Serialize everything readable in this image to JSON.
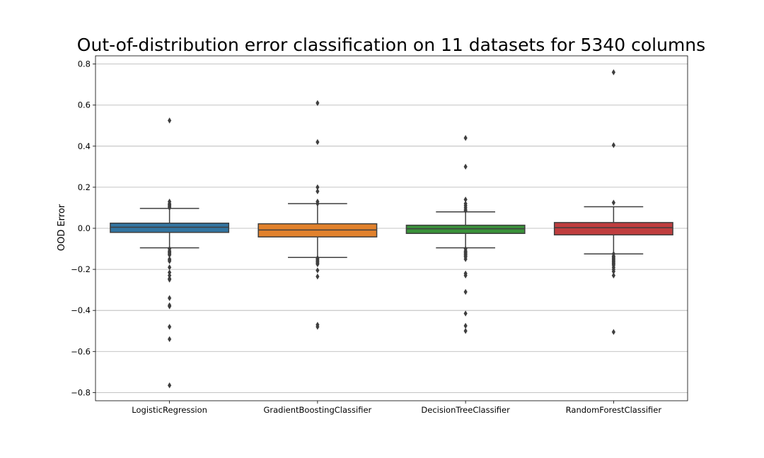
{
  "chart_data": {
    "type": "box",
    "title": "Out-of-distribution error classification on 11 datasets for 5340 columns",
    "xlabel": "",
    "ylabel": "OOD Error",
    "ylim": [
      -0.84,
      0.84
    ],
    "yticks": [
      -0.8,
      -0.6,
      -0.4,
      -0.2,
      0.0,
      0.2,
      0.4,
      0.6,
      0.8
    ],
    "ytick_labels": [
      "−0.8",
      "−0.6",
      "−0.4",
      "−0.2",
      "0.0",
      "0.2",
      "0.4",
      "0.6",
      "0.8"
    ],
    "grid": "horizontal",
    "categories": [
      "LogisticRegression",
      "GradientBoostingClassifier",
      "DecisionTreeClassifier",
      "RandomForestClassifier"
    ],
    "colors": [
      "#3274a1",
      "#e1812c",
      "#3a923a",
      "#c03d3e"
    ],
    "boxes": [
      {
        "q1": -0.02,
        "median": 0.005,
        "q3": 0.025,
        "whisker_low": -0.095,
        "whisker_high": 0.097,
        "outliers": [
          0.525,
          0.13,
          0.12,
          0.115,
          0.11,
          0.105,
          0.1,
          -0.1,
          -0.11,
          -0.115,
          -0.12,
          -0.125,
          -0.13,
          -0.15,
          -0.155,
          -0.16,
          -0.19,
          -0.215,
          -0.23,
          -0.245,
          -0.25,
          -0.34,
          -0.375,
          -0.38,
          -0.48,
          -0.54,
          -0.765
        ]
      },
      {
        "q1": -0.042,
        "median": -0.008,
        "q3": 0.022,
        "whisker_low": -0.142,
        "whisker_high": 0.12,
        "outliers": [
          0.61,
          0.42,
          0.2,
          0.18,
          0.13,
          0.12,
          -0.145,
          -0.15,
          -0.155,
          -0.16,
          -0.165,
          -0.17,
          -0.175,
          -0.205,
          -0.235,
          -0.47,
          -0.48
        ]
      },
      {
        "q1": -0.025,
        "median": -0.002,
        "q3": 0.015,
        "whisker_low": -0.095,
        "whisker_high": 0.08,
        "outliers": [
          0.44,
          0.3,
          0.14,
          0.12,
          0.11,
          0.1,
          0.09,
          0.085,
          -0.1,
          -0.11,
          -0.115,
          -0.12,
          -0.125,
          -0.13,
          -0.135,
          -0.14,
          -0.15,
          -0.22,
          -0.23,
          -0.31,
          -0.415,
          -0.475,
          -0.5
        ]
      },
      {
        "q1": -0.032,
        "median": 0.003,
        "q3": 0.028,
        "whisker_low": -0.125,
        "whisker_high": 0.105,
        "outliers": [
          0.76,
          0.405,
          0.125,
          -0.125,
          -0.135,
          -0.14,
          -0.145,
          -0.15,
          -0.155,
          -0.16,
          -0.165,
          -0.17,
          -0.175,
          -0.18,
          -0.19,
          -0.2,
          -0.21,
          -0.23,
          -0.505
        ]
      }
    ]
  }
}
